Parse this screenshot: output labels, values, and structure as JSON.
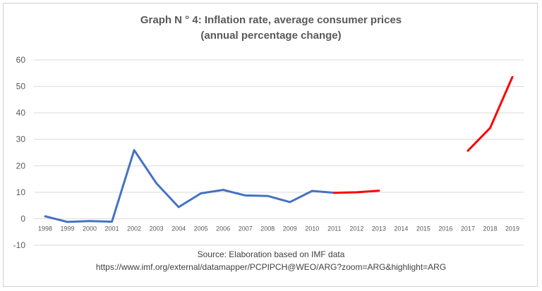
{
  "chart_data": {
    "type": "line",
    "title_line1": "Graph N ° 4: Inflation rate, average consumer prices",
    "title_line2": "(annual percentage change)",
    "xlabel": "",
    "ylabel": "",
    "categories": [
      "1998",
      "1999",
      "2000",
      "2001",
      "2002",
      "2003",
      "2004",
      "2005",
      "2006",
      "2007",
      "2008",
      "2009",
      "2010",
      "2011",
      "2012",
      "2013",
      "2014",
      "2015",
      "2016",
      "2017",
      "2018",
      "2019"
    ],
    "ylim": [
      -10,
      60
    ],
    "yticks": [
      60,
      50,
      40,
      30,
      20,
      10,
      0,
      -10
    ],
    "grid": true,
    "series": [
      {
        "color": "#4472C4",
        "values": [
          0.9,
          -1.2,
          -0.9,
          -1.1,
          25.9,
          13.4,
          4.4,
          9.6,
          10.9,
          8.8,
          8.6,
          6.3,
          10.5,
          9.8,
          null,
          null,
          null,
          null,
          null,
          null,
          null,
          null
        ]
      },
      {
        "color": "#FF0000",
        "values": [
          null,
          null,
          null,
          null,
          null,
          null,
          null,
          null,
          null,
          null,
          null,
          null,
          null,
          9.8,
          10.0,
          10.6,
          null,
          null,
          null,
          null,
          null,
          null
        ]
      },
      {
        "color": "#FF0000",
        "values": [
          null,
          null,
          null,
          null,
          null,
          null,
          null,
          null,
          null,
          null,
          null,
          null,
          null,
          null,
          null,
          null,
          null,
          null,
          null,
          25.7,
          34.3,
          53.5
        ]
      }
    ],
    "source_line1": "Source: Elaboration based on IMF data",
    "source_line2": "https://www.imf.org/external/datamapper/PCPIPCH@WEO/ARG?zoom=ARG&highlight=ARG"
  }
}
